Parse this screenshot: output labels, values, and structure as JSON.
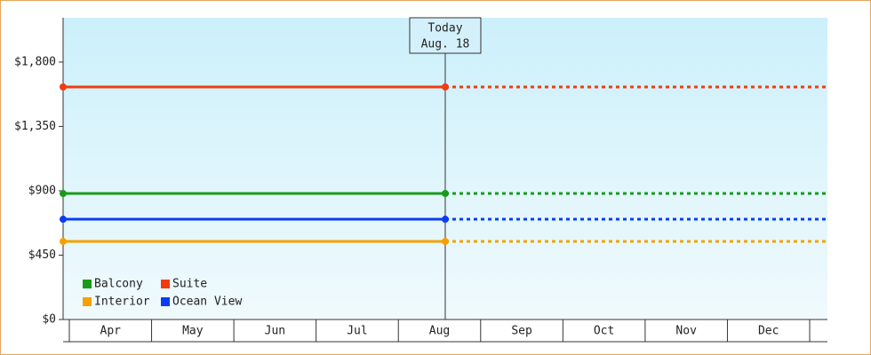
{
  "chart_data": {
    "type": "line",
    "categories": [
      "Apr",
      "May",
      "Jun",
      "Jul",
      "Aug",
      "Sep",
      "Oct",
      "Nov",
      "Dec"
    ],
    "series": [
      {
        "name": "Balcony",
        "color": "#1a9a1a",
        "value": 881
      },
      {
        "name": "Suite",
        "color": "#f03c10",
        "value": 1626
      },
      {
        "name": "Interior",
        "color": "#f5a000",
        "value": 546
      },
      {
        "name": "Ocean View",
        "color": "#0a3cf5",
        "value": 701
      }
    ],
    "ylim": [
      0,
      2110
    ],
    "yticks": [
      {
        "value": 0,
        "label": "$0"
      },
      {
        "value": 450,
        "label": "$450"
      },
      {
        "value": 900,
        "label": "$900"
      },
      {
        "value": 1350,
        "label": "$1,350"
      },
      {
        "value": 1800,
        "label": "$1,800"
      }
    ],
    "annotation": {
      "title": "Today",
      "date": "Aug. 18"
    }
  }
}
